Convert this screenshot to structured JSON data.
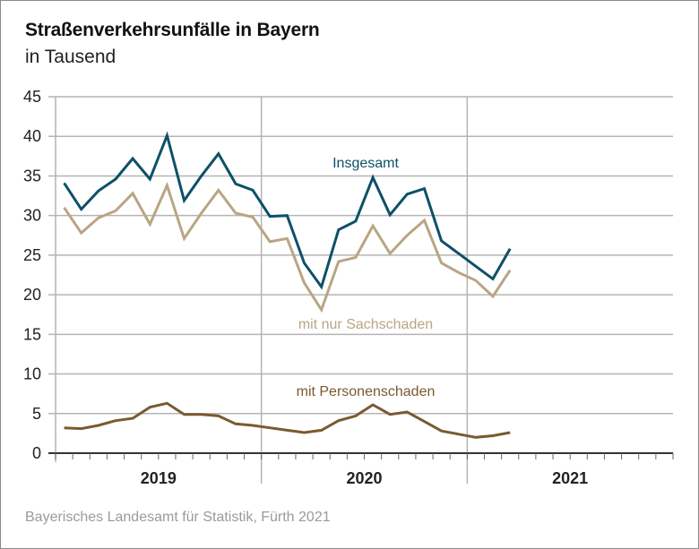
{
  "title": "Straßenverkehrsunfälle in Bayern",
  "subtitle": "in Tausend",
  "source": "Bayerisches Landesamt für Statistik, Fürth 2021",
  "chart_data": {
    "type": "line",
    "title": "Straßenverkehrsunfälle in Bayern",
    "subtitle": "in Tausend",
    "xlabel": "",
    "ylabel": "",
    "ylim": [
      0,
      45
    ],
    "yticks": [
      0,
      5,
      10,
      15,
      20,
      25,
      30,
      35,
      40,
      45
    ],
    "ytick_labels": [
      "0",
      "5",
      "10",
      "15",
      "20",
      "25",
      "30",
      "35",
      "40",
      "45"
    ],
    "grid": true,
    "x_groups": [
      "2019",
      "2020",
      "2021"
    ],
    "months_per_group": 12,
    "x": [
      "2019-01",
      "2019-02",
      "2019-03",
      "2019-04",
      "2019-05",
      "2019-06",
      "2019-07",
      "2019-08",
      "2019-09",
      "2019-10",
      "2019-11",
      "2019-12",
      "2020-01",
      "2020-02",
      "2020-03",
      "2020-04",
      "2020-05",
      "2020-06",
      "2020-07",
      "2020-08",
      "2020-09",
      "2020-10",
      "2020-11",
      "2020-12",
      "2021-01",
      "2021-02",
      "2021-03"
    ],
    "series": [
      {
        "name": "Insgesamt",
        "color": "#0d5068",
        "values": [
          34.1,
          30.8,
          33.1,
          34.6,
          37.2,
          34.6,
          40.1,
          31.9,
          35.0,
          37.8,
          34.0,
          33.2,
          29.9,
          30.0,
          24.0,
          21.0,
          28.2,
          29.3,
          34.8,
          30.1,
          32.7,
          33.4,
          26.8,
          25.2,
          23.6,
          22.0,
          25.8
        ]
      },
      {
        "name": "mit nur Sachschaden",
        "color": "#b9a584",
        "values": [
          31.0,
          27.8,
          29.7,
          30.6,
          32.8,
          28.9,
          33.8,
          27.1,
          30.3,
          33.2,
          30.3,
          29.8,
          26.7,
          27.1,
          21.5,
          18.1,
          24.2,
          24.7,
          28.7,
          25.2,
          27.5,
          29.4,
          24.0,
          22.8,
          21.8,
          19.8,
          23.1
        ]
      },
      {
        "name": "mit Personenschaden",
        "color": "#7a5a30",
        "values": [
          3.2,
          3.1,
          3.5,
          4.1,
          4.4,
          5.8,
          6.3,
          4.9,
          4.9,
          4.7,
          3.7,
          3.5,
          3.2,
          2.9,
          2.6,
          2.9,
          4.1,
          4.7,
          6.1,
          4.9,
          5.2,
          4.0,
          2.8,
          2.4,
          2.0,
          2.2,
          2.6
        ]
      }
    ],
    "annotations": [
      "Insgesamt",
      "mit nur Sachschaden",
      "mit Personenschaden"
    ],
    "legend": "inline labels"
  }
}
